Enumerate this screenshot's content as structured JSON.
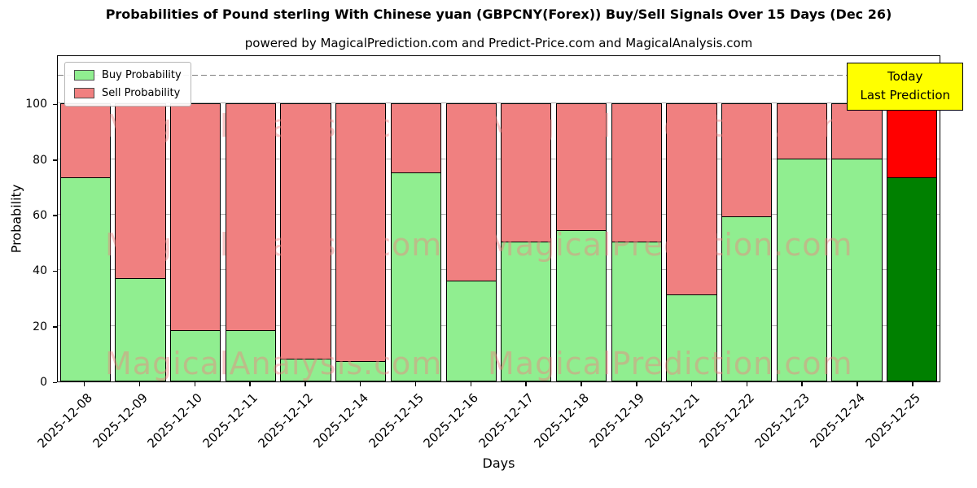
{
  "annotation": {
    "line1": "Today",
    "line2": "Last Prediction",
    "bg": "#ffff00"
  },
  "watermarks": [
    "MagicalAnalysis.com",
    "MagicalPrediction.com"
  ],
  "colors": {
    "watermark": "rgba(240,128,128,0.45)",
    "grid": "#b0b0b0",
    "dashed_line": "#7f7f7f",
    "bar_edge": "#000000",
    "annotation_bg": "#ffff00"
  },
  "chart_data": {
    "type": "bar",
    "stacked": true,
    "title": "Probabilities of Pound sterling With Chinese yuan (GBPCNY(Forex)) Buy/Sell Signals Over 15 Days (Dec 26)",
    "subtitle": "powered by MagicalPrediction.com and Predict-Price.com and MagicalAnalysis.com",
    "xlabel": "Days",
    "ylabel": "Probability",
    "categories": [
      "2025-12-08",
      "2025-12-09",
      "2025-12-10",
      "2025-12-11",
      "2025-12-12",
      "2025-12-14",
      "2025-12-15",
      "2025-12-16",
      "2025-12-17",
      "2025-12-18",
      "2025-12-19",
      "2025-12-21",
      "2025-12-22",
      "2025-12-23",
      "2025-12-24",
      "2025-12-25"
    ],
    "series": [
      {
        "name": "Buy Probability",
        "color": "#90ee90",
        "values": [
          73,
          37,
          18,
          18,
          8,
          7,
          75,
          36,
          50,
          54,
          50,
          31,
          59,
          80,
          80,
          73
        ]
      },
      {
        "name": "Sell Probability",
        "color": "#f08080",
        "values": [
          27,
          63,
          82,
          82,
          92,
          93,
          25,
          64,
          50,
          46,
          50,
          69,
          41,
          20,
          20,
          27
        ]
      }
    ],
    "last_bar_colors": {
      "buy": "#008000",
      "sell": "#ff0000"
    },
    "yticks": [
      0,
      20,
      40,
      60,
      80,
      100
    ],
    "ylim": [
      0,
      117
    ],
    "dashed_line_y": 110,
    "grid": true,
    "legend_position": "upper left"
  }
}
